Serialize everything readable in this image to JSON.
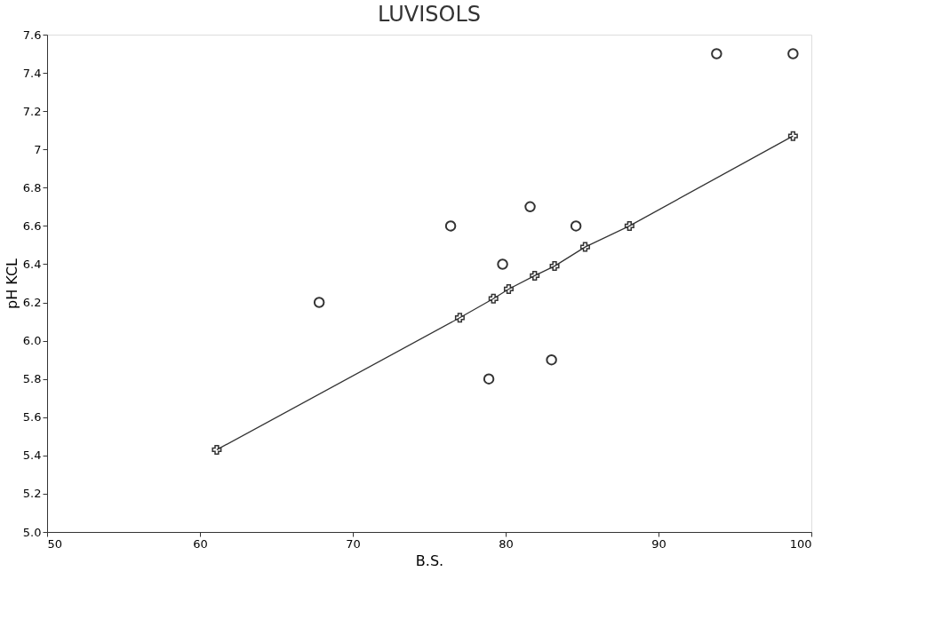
{
  "chart_data": {
    "type": "scatter",
    "title": "LUVISOLS",
    "xlabel": "B.S.",
    "ylabel": "pH KCL",
    "xlim": [
      50,
      100
    ],
    "xticks": [
      50,
      60,
      70,
      80,
      90,
      100
    ],
    "ylim": [
      5.0,
      7.6
    ],
    "yticks": [
      {
        "value": 5,
        "label": "5.0"
      },
      5.2,
      5.4,
      5.6,
      5.8,
      {
        "value": 6,
        "label": "6.0"
      },
      6.2,
      6.4,
      6.6,
      6.8,
      7,
      7.2,
      7.4,
      7.6
    ],
    "grid": false,
    "series": [
      {
        "marker": "circle",
        "color": "#333333",
        "x": [
          67.8,
          76.4,
          79.8,
          81.6,
          84.6,
          78.9,
          83.0,
          93.8,
          98.8
        ],
        "values": [
          6.2,
          6.6,
          6.4,
          6.7,
          6.6,
          5.8,
          5.9,
          7.5,
          7.5
        ]
      },
      {
        "type": "line",
        "marker": "cross",
        "line_style": "solid",
        "color": "#333333",
        "x": [
          61.1,
          77.0,
          79.2,
          80.2,
          81.9,
          83.2,
          85.2,
          88.1,
          98.8
        ],
        "values": [
          5.43,
          6.12,
          6.22,
          6.27,
          6.34,
          6.39,
          6.49,
          6.6,
          7.07
        ]
      }
    ]
  }
}
